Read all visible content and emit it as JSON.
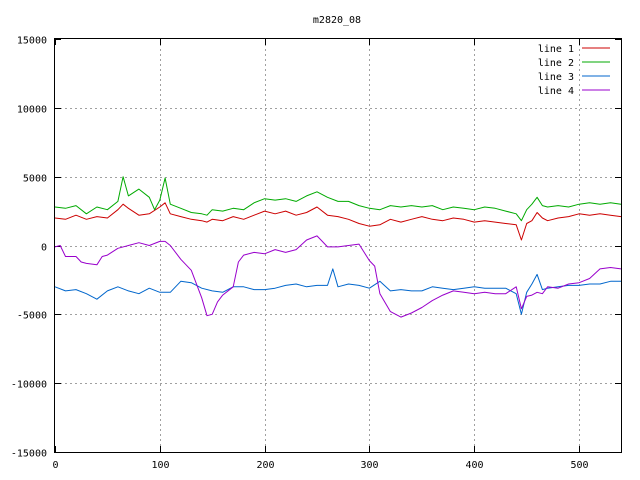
{
  "chart_data": {
    "type": "line",
    "title": "m2820_08",
    "xlabel": "",
    "ylabel": "",
    "xlim": [
      0,
      540
    ],
    "ylim": [
      -15000,
      15000
    ],
    "xticks": [
      0,
      100,
      200,
      300,
      400,
      500
    ],
    "yticks": [
      -15000,
      -10000,
      -5000,
      0,
      5000,
      10000,
      15000
    ],
    "xtick_labels": [
      "0",
      "100",
      "200",
      "300",
      "400",
      "500"
    ],
    "ytick_labels": [
      "-15000",
      "-10000",
      "-5000",
      "0",
      "5000",
      "10000",
      "15000"
    ],
    "grid": true,
    "legend_position": "top-right",
    "series": [
      {
        "name": "line 1",
        "color": "#cc0000",
        "points": [
          [
            0,
            2000
          ],
          [
            10,
            1900
          ],
          [
            20,
            2200
          ],
          [
            30,
            1900
          ],
          [
            40,
            2100
          ],
          [
            50,
            2000
          ],
          [
            60,
            2600
          ],
          [
            65,
            3000
          ],
          [
            70,
            2700
          ],
          [
            80,
            2200
          ],
          [
            90,
            2300
          ],
          [
            100,
            2800
          ],
          [
            105,
            3100
          ],
          [
            110,
            2300
          ],
          [
            120,
            2100
          ],
          [
            130,
            1900
          ],
          [
            140,
            1800
          ],
          [
            145,
            1700
          ],
          [
            150,
            1900
          ],
          [
            160,
            1800
          ],
          [
            170,
            2100
          ],
          [
            180,
            1900
          ],
          [
            190,
            2200
          ],
          [
            200,
            2500
          ],
          [
            210,
            2300
          ],
          [
            220,
            2500
          ],
          [
            230,
            2200
          ],
          [
            240,
            2400
          ],
          [
            250,
            2800
          ],
          [
            260,
            2200
          ],
          [
            270,
            2100
          ],
          [
            280,
            1900
          ],
          [
            290,
            1600
          ],
          [
            300,
            1400
          ],
          [
            310,
            1500
          ],
          [
            320,
            1900
          ],
          [
            330,
            1700
          ],
          [
            340,
            1900
          ],
          [
            350,
            2100
          ],
          [
            360,
            1900
          ],
          [
            370,
            1800
          ],
          [
            380,
            2000
          ],
          [
            390,
            1900
          ],
          [
            400,
            1700
          ],
          [
            410,
            1800
          ],
          [
            420,
            1700
          ],
          [
            430,
            1600
          ],
          [
            440,
            1500
          ],
          [
            445,
            400
          ],
          [
            450,
            1600
          ],
          [
            455,
            1800
          ],
          [
            460,
            2400
          ],
          [
            465,
            2000
          ],
          [
            470,
            1800
          ],
          [
            480,
            2000
          ],
          [
            490,
            2100
          ],
          [
            500,
            2300
          ],
          [
            510,
            2200
          ],
          [
            520,
            2300
          ],
          [
            530,
            2200
          ],
          [
            540,
            2100
          ]
        ]
      },
      {
        "name": "line 2",
        "color": "#00aa00",
        "points": [
          [
            0,
            2800
          ],
          [
            10,
            2700
          ],
          [
            20,
            2900
          ],
          [
            30,
            2300
          ],
          [
            40,
            2800
          ],
          [
            50,
            2600
          ],
          [
            60,
            3200
          ],
          [
            65,
            5000
          ],
          [
            70,
            3600
          ],
          [
            80,
            4100
          ],
          [
            90,
            3500
          ],
          [
            95,
            2600
          ],
          [
            100,
            3300
          ],
          [
            105,
            4900
          ],
          [
            110,
            3000
          ],
          [
            120,
            2700
          ],
          [
            130,
            2400
          ],
          [
            140,
            2300
          ],
          [
            145,
            2200
          ],
          [
            150,
            2600
          ],
          [
            160,
            2500
          ],
          [
            170,
            2700
          ],
          [
            180,
            2600
          ],
          [
            190,
            3100
          ],
          [
            200,
            3400
          ],
          [
            210,
            3300
          ],
          [
            220,
            3400
          ],
          [
            230,
            3200
          ],
          [
            240,
            3600
          ],
          [
            250,
            3900
          ],
          [
            260,
            3500
          ],
          [
            270,
            3200
          ],
          [
            280,
            3200
          ],
          [
            290,
            2900
          ],
          [
            300,
            2700
          ],
          [
            310,
            2600
          ],
          [
            320,
            2900
          ],
          [
            330,
            2800
          ],
          [
            340,
            2900
          ],
          [
            350,
            2800
          ],
          [
            360,
            2900
          ],
          [
            370,
            2600
          ],
          [
            380,
            2800
          ],
          [
            390,
            2700
          ],
          [
            400,
            2600
          ],
          [
            410,
            2800
          ],
          [
            420,
            2700
          ],
          [
            430,
            2500
          ],
          [
            440,
            2300
          ],
          [
            445,
            1800
          ],
          [
            450,
            2600
          ],
          [
            455,
            3000
          ],
          [
            460,
            3500
          ],
          [
            465,
            2900
          ],
          [
            470,
            2800
          ],
          [
            480,
            2900
          ],
          [
            490,
            2800
          ],
          [
            500,
            3000
          ],
          [
            510,
            3100
          ],
          [
            520,
            3000
          ],
          [
            530,
            3100
          ],
          [
            540,
            3000
          ]
        ]
      },
      {
        "name": "line 3",
        "color": "#0066cc",
        "points": [
          [
            0,
            -3000
          ],
          [
            10,
            -3300
          ],
          [
            20,
            -3200
          ],
          [
            30,
            -3500
          ],
          [
            40,
            -3900
          ],
          [
            50,
            -3300
          ],
          [
            60,
            -3000
          ],
          [
            70,
            -3300
          ],
          [
            80,
            -3500
          ],
          [
            90,
            -3100
          ],
          [
            100,
            -3400
          ],
          [
            110,
            -3400
          ],
          [
            120,
            -2600
          ],
          [
            130,
            -2700
          ],
          [
            140,
            -3100
          ],
          [
            150,
            -3300
          ],
          [
            160,
            -3400
          ],
          [
            170,
            -3000
          ],
          [
            180,
            -3000
          ],
          [
            190,
            -3200
          ],
          [
            200,
            -3200
          ],
          [
            210,
            -3100
          ],
          [
            220,
            -2900
          ],
          [
            230,
            -2800
          ],
          [
            240,
            -3000
          ],
          [
            250,
            -2900
          ],
          [
            260,
            -2900
          ],
          [
            265,
            -1700
          ],
          [
            270,
            -3000
          ],
          [
            280,
            -2800
          ],
          [
            290,
            -2900
          ],
          [
            300,
            -3100
          ],
          [
            310,
            -2600
          ],
          [
            320,
            -3300
          ],
          [
            330,
            -3200
          ],
          [
            340,
            -3300
          ],
          [
            350,
            -3300
          ],
          [
            360,
            -3000
          ],
          [
            370,
            -3100
          ],
          [
            380,
            -3200
          ],
          [
            390,
            -3100
          ],
          [
            400,
            -3000
          ],
          [
            410,
            -3100
          ],
          [
            420,
            -3100
          ],
          [
            430,
            -3100
          ],
          [
            440,
            -3500
          ],
          [
            445,
            -5000
          ],
          [
            450,
            -3400
          ],
          [
            455,
            -2800
          ],
          [
            460,
            -2100
          ],
          [
            465,
            -3200
          ],
          [
            470,
            -3100
          ],
          [
            480,
            -3000
          ],
          [
            490,
            -2900
          ],
          [
            500,
            -2900
          ],
          [
            510,
            -2800
          ],
          [
            520,
            -2800
          ],
          [
            530,
            -2600
          ],
          [
            540,
            -2600
          ]
        ]
      },
      {
        "name": "line 4",
        "color": "#9900cc",
        "points": [
          [
            0,
            -100
          ],
          [
            5,
            0
          ],
          [
            10,
            -800
          ],
          [
            20,
            -800
          ],
          [
            25,
            -1200
          ],
          [
            30,
            -1300
          ],
          [
            40,
            -1400
          ],
          [
            45,
            -800
          ],
          [
            50,
            -700
          ],
          [
            60,
            -200
          ],
          [
            70,
            0
          ],
          [
            80,
            200
          ],
          [
            90,
            0
          ],
          [
            100,
            300
          ],
          [
            105,
            300
          ],
          [
            110,
            0
          ],
          [
            120,
            -1000
          ],
          [
            130,
            -1800
          ],
          [
            140,
            -3800
          ],
          [
            145,
            -5100
          ],
          [
            150,
            -5000
          ],
          [
            155,
            -4100
          ],
          [
            160,
            -3600
          ],
          [
            170,
            -3000
          ],
          [
            175,
            -1200
          ],
          [
            180,
            -700
          ],
          [
            190,
            -500
          ],
          [
            200,
            -600
          ],
          [
            210,
            -300
          ],
          [
            220,
            -500
          ],
          [
            230,
            -300
          ],
          [
            240,
            400
          ],
          [
            250,
            700
          ],
          [
            255,
            300
          ],
          [
            260,
            -100
          ],
          [
            270,
            -100
          ],
          [
            280,
            0
          ],
          [
            290,
            100
          ],
          [
            295,
            -500
          ],
          [
            300,
            -1100
          ],
          [
            305,
            -1500
          ],
          [
            310,
            -3500
          ],
          [
            320,
            -4800
          ],
          [
            330,
            -5200
          ],
          [
            340,
            -4900
          ],
          [
            350,
            -4500
          ],
          [
            360,
            -4000
          ],
          [
            370,
            -3600
          ],
          [
            380,
            -3300
          ],
          [
            390,
            -3400
          ],
          [
            400,
            -3500
          ],
          [
            410,
            -3400
          ],
          [
            420,
            -3500
          ],
          [
            430,
            -3500
          ],
          [
            440,
            -3000
          ],
          [
            445,
            -4600
          ],
          [
            450,
            -3700
          ],
          [
            455,
            -3600
          ],
          [
            460,
            -3400
          ],
          [
            465,
            -3500
          ],
          [
            470,
            -3000
          ],
          [
            480,
            -3100
          ],
          [
            490,
            -2800
          ],
          [
            500,
            -2700
          ],
          [
            510,
            -2400
          ],
          [
            520,
            -1700
          ],
          [
            530,
            -1600
          ],
          [
            540,
            -1700
          ]
        ]
      }
    ]
  }
}
